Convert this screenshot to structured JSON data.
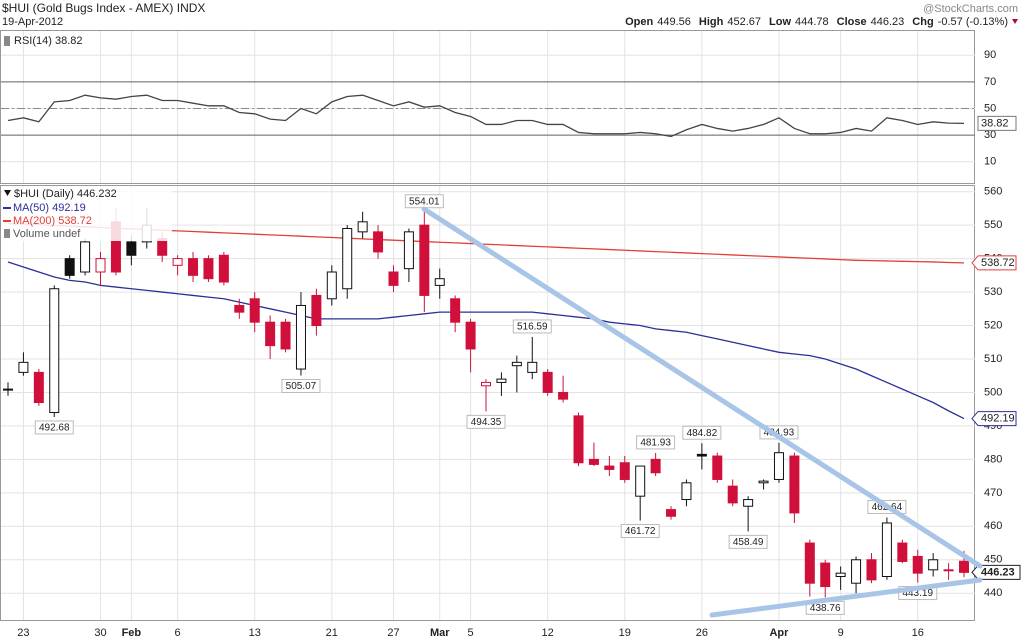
{
  "header": {
    "title": "$HUI (Gold Bugs Index - AMEX) INDX",
    "date": "19-Apr-2012",
    "quote_labels": [
      "Open",
      "High",
      "Low",
      "Close",
      "Chg"
    ],
    "change": "-0.57 (-0.13%)",
    "watermark": "@StockCharts.com"
  },
  "chart_data": [
    {
      "type": "line",
      "name": "RSI(14) 38.82",
      "color": "#444444",
      "ylim": [
        -6,
        109
      ],
      "yticks": [
        10,
        30,
        50,
        70,
        90
      ],
      "reference_lines": [
        {
          "value": 70,
          "style": "solid"
        },
        {
          "value": 50,
          "style": "dashdot"
        },
        {
          "value": 30,
          "style": "solid"
        }
      ],
      "values": [
        41,
        43,
        40,
        55,
        56,
        60,
        58,
        57,
        59,
        60,
        56,
        56,
        54,
        52,
        52,
        47,
        46,
        42,
        41,
        50,
        46,
        55,
        59,
        60,
        56,
        52,
        55,
        51,
        52,
        47,
        44,
        38,
        38,
        41,
        41,
        38,
        38,
        32,
        31,
        31,
        31,
        32,
        31,
        29,
        34,
        38,
        35,
        33,
        35,
        38,
        43,
        35,
        31,
        31,
        32,
        35,
        33,
        43,
        41,
        38,
        40,
        39,
        38.82
      ]
    },
    {
      "type": "candlestick",
      "legend_title": "$HUI (Daily) 446.232",
      "volume_label": "Volume undef",
      "up_color": "#111111",
      "down_color": "#d0103a",
      "categories": [
        null,
        "23",
        null,
        null,
        null,
        null,
        "30",
        null,
        "Feb",
        null,
        null,
        "6",
        null,
        null,
        null,
        null,
        "13",
        null,
        null,
        null,
        null,
        "21",
        null,
        null,
        null,
        "27",
        null,
        null,
        "Mar",
        null,
        "5",
        null,
        null,
        null,
        null,
        "12",
        null,
        null,
        null,
        null,
        "19",
        null,
        null,
        null,
        null,
        "26",
        null,
        null,
        null,
        null,
        "Apr",
        null,
        null,
        null,
        "9",
        null,
        null,
        null,
        null,
        "16",
        null,
        null,
        null
      ],
      "open": [
        501,
        506,
        506,
        494,
        540,
        536,
        536,
        551,
        545,
        545,
        546,
        538,
        540,
        540,
        541,
        526,
        528,
        521,
        521,
        507,
        529,
        528,
        531,
        548,
        548,
        536,
        537,
        550,
        532,
        528,
        521,
        502,
        503,
        508,
        506,
        506,
        500,
        493,
        480,
        478,
        479,
        469,
        480,
        465,
        468,
        481.5,
        481,
        472,
        466,
        473,
        474,
        481,
        455,
        449,
        445,
        443,
        450,
        445,
        455,
        451,
        447,
        447,
        449.56
      ],
      "high": [
        503,
        512,
        507,
        532,
        541,
        546,
        542,
        555,
        547,
        555,
        548,
        541,
        542,
        541,
        542,
        528,
        530,
        523,
        522,
        530,
        531,
        538,
        550,
        554,
        550,
        538,
        549,
        554.01,
        537,
        529,
        522,
        504,
        506,
        511,
        516.59,
        507,
        505,
        494,
        485,
        481,
        481,
        478,
        481.93,
        466,
        474,
        484.82,
        482,
        474,
        469,
        474,
        484.93,
        482,
        456,
        450,
        448,
        451,
        452,
        462.64,
        456,
        453,
        452,
        449,
        452.67
      ],
      "low": [
        499,
        505,
        496,
        492.68,
        534,
        535,
        532,
        535,
        538,
        543,
        539,
        535,
        533,
        533,
        532,
        522,
        518,
        510,
        512,
        505.07,
        517,
        526,
        528,
        546,
        540,
        530,
        533,
        524,
        528,
        518,
        506,
        494.35,
        499,
        500,
        504,
        499,
        497,
        478,
        478,
        475,
        473,
        461.72,
        475,
        462,
        466,
        477,
        473,
        466,
        458.49,
        471,
        473,
        461,
        439,
        438.76,
        441,
        440,
        443,
        444,
        449,
        443.19,
        445,
        444,
        444.78
      ],
      "close": [
        501,
        509,
        497,
        531,
        535,
        545,
        540,
        536,
        541,
        550,
        541,
        540,
        535,
        534,
        533,
        524,
        521,
        514,
        513,
        526,
        520,
        536,
        549,
        551,
        542,
        532,
        548,
        529,
        534,
        521,
        513,
        503,
        504,
        509,
        509,
        500,
        498,
        479,
        478.5,
        477,
        474,
        478,
        476,
        463,
        473,
        481,
        474,
        467,
        468,
        473.5,
        482,
        464,
        443,
        442,
        446,
        450,
        444,
        461,
        449.5,
        446,
        450,
        446.8,
        446.23
      ],
      "label_high": [
        27,
        34,
        42,
        45,
        50,
        57
      ],
      "label_low": [
        3,
        19,
        31,
        41,
        48,
        53,
        59
      ],
      "series": [
        {
          "name": "MA(50) 492.19",
          "color": "#2b2f9a",
          "values": [
            539,
            537.5,
            536,
            534.5,
            533.5,
            533,
            532,
            531.5,
            531,
            530.5,
            530,
            529.5,
            529,
            528.5,
            528,
            527,
            526,
            525,
            524,
            523,
            522,
            522,
            522,
            522,
            522,
            522.5,
            523,
            523.5,
            524,
            524,
            524,
            524,
            524,
            524,
            524,
            523.5,
            523,
            522.5,
            522,
            521,
            520.5,
            520,
            519,
            518.5,
            518,
            517,
            516,
            515,
            514,
            513,
            512,
            511.5,
            511,
            510,
            508.5,
            507,
            505,
            503,
            501,
            499,
            497,
            494.5,
            492.19
          ]
        },
        {
          "name": "MA(200) 538.72",
          "color": "#e0403a",
          "values": [
            550.5,
            550.3,
            550.1,
            549.9,
            549.7,
            549.5,
            549.3,
            549.1,
            548.9,
            548.7,
            548.5,
            548.3,
            548.1,
            547.9,
            547.7,
            547.5,
            547.3,
            547.1,
            546.9,
            546.7,
            546.5,
            546.3,
            546.1,
            545.9,
            545.7,
            545.5,
            545.3,
            545.1,
            544.9,
            544.7,
            544.5,
            544.3,
            544.1,
            543.9,
            543.7,
            543.5,
            543.3,
            543.1,
            542.9,
            542.7,
            542.5,
            542.3,
            542.1,
            541.9,
            541.7,
            541.5,
            541.3,
            541.1,
            540.9,
            540.7,
            540.5,
            540.3,
            540.1,
            539.9,
            539.7,
            539.5,
            539.4,
            539.3,
            539.2,
            539.1,
            539.0,
            538.85,
            538.72
          ]
        }
      ],
      "ylim": [
        432,
        562
      ],
      "yticks": [
        440,
        450,
        460,
        470,
        480,
        490,
        500,
        510,
        520,
        530,
        540,
        550,
        560
      ],
      "grid": true
    }
  ]
}
